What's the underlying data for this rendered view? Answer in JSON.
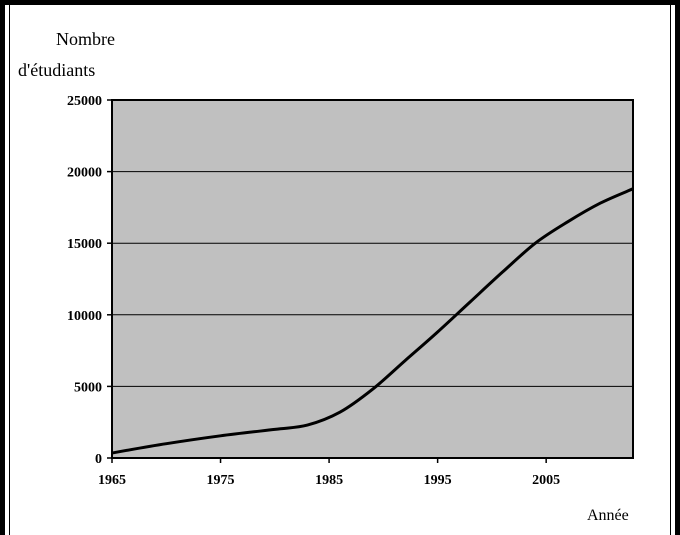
{
  "chart_data": {
    "type": "line",
    "title": "",
    "ylabel_line1": "Nombre",
    "ylabel_line2": "d'étudiants",
    "xlabel": "Année",
    "xlim": [
      1965,
      2013
    ],
    "ylim": [
      0,
      25000
    ],
    "xticks": [
      "1965",
      "1975",
      "1985",
      "1995",
      "2005"
    ],
    "yticks": [
      "0",
      "5000",
      "10000",
      "15000",
      "20000",
      "25000"
    ],
    "grid": "horizontal",
    "legend": "none",
    "plot_bg": "#c0c0c0",
    "line_color": "#000000",
    "series": [
      {
        "x": [
          1965,
          1970,
          1975,
          1980,
          1983,
          1986,
          1989,
          1992,
          1995,
          1998,
          2001,
          2004,
          2007,
          2010,
          2013
        ],
        "values": [
          350,
          1000,
          1550,
          2000,
          2300,
          3200,
          4800,
          6800,
          8800,
          10900,
          13000,
          15000,
          16500,
          17800,
          18800
        ]
      }
    ]
  }
}
